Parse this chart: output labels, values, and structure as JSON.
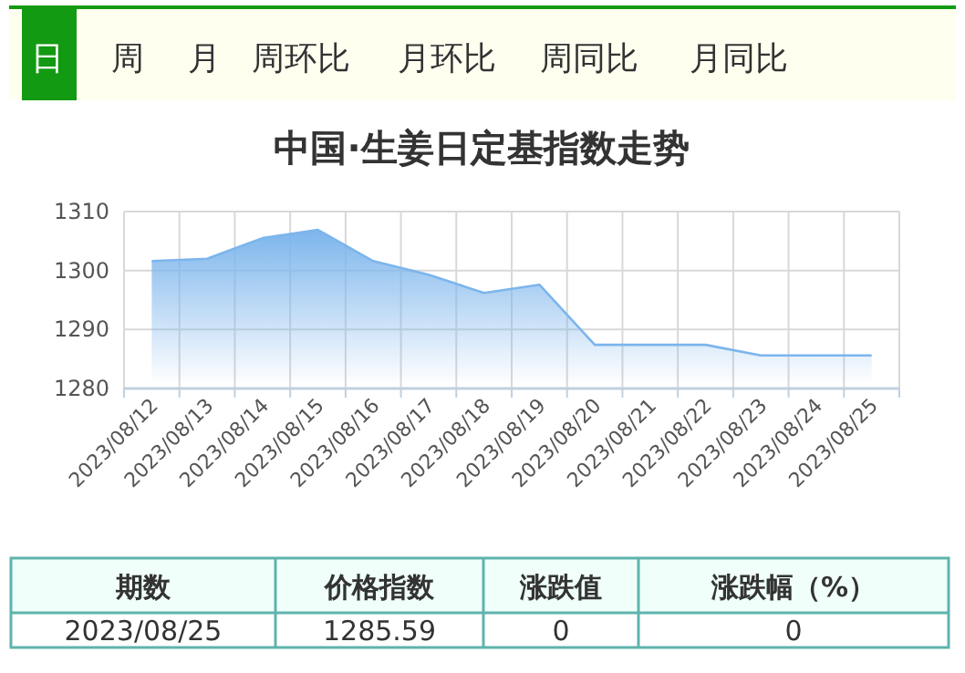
{
  "chart_data": {
    "type": "area",
    "title": "中国·生姜日定基指数走势",
    "categories": [
      "2023/08/12",
      "2023/08/13",
      "2023/08/14",
      "2023/08/15",
      "2023/08/16",
      "2023/08/17",
      "2023/08/18",
      "2023/08/19",
      "2023/08/20",
      "2023/08/21",
      "2023/08/22",
      "2023/08/23",
      "2023/08/24",
      "2023/08/25"
    ],
    "series": [
      {
        "color": "#7cb5ec",
        "values": [
          1301.6,
          1302.0,
          1305.5,
          1306.9,
          1301.6,
          1299.3,
          1296.2,
          1297.6,
          1287.4,
          1287.4,
          1287.4,
          1285.6,
          1285.6,
          1285.6
        ]
      }
    ],
    "ylim": [
      1280,
      1310
    ],
    "yticks": [
      1280,
      1290,
      1300,
      1310
    ],
    "grid": true,
    "marker": "none",
    "annotations": [
      "日",
      "周",
      "月",
      "周环比",
      "月环比",
      "周同比",
      "月同比",
      "期数",
      "价格指数",
      "涨跌值",
      "涨跌幅（%）",
      "2023/08/25",
      "1285.59",
      "0",
      "0"
    ]
  }
}
